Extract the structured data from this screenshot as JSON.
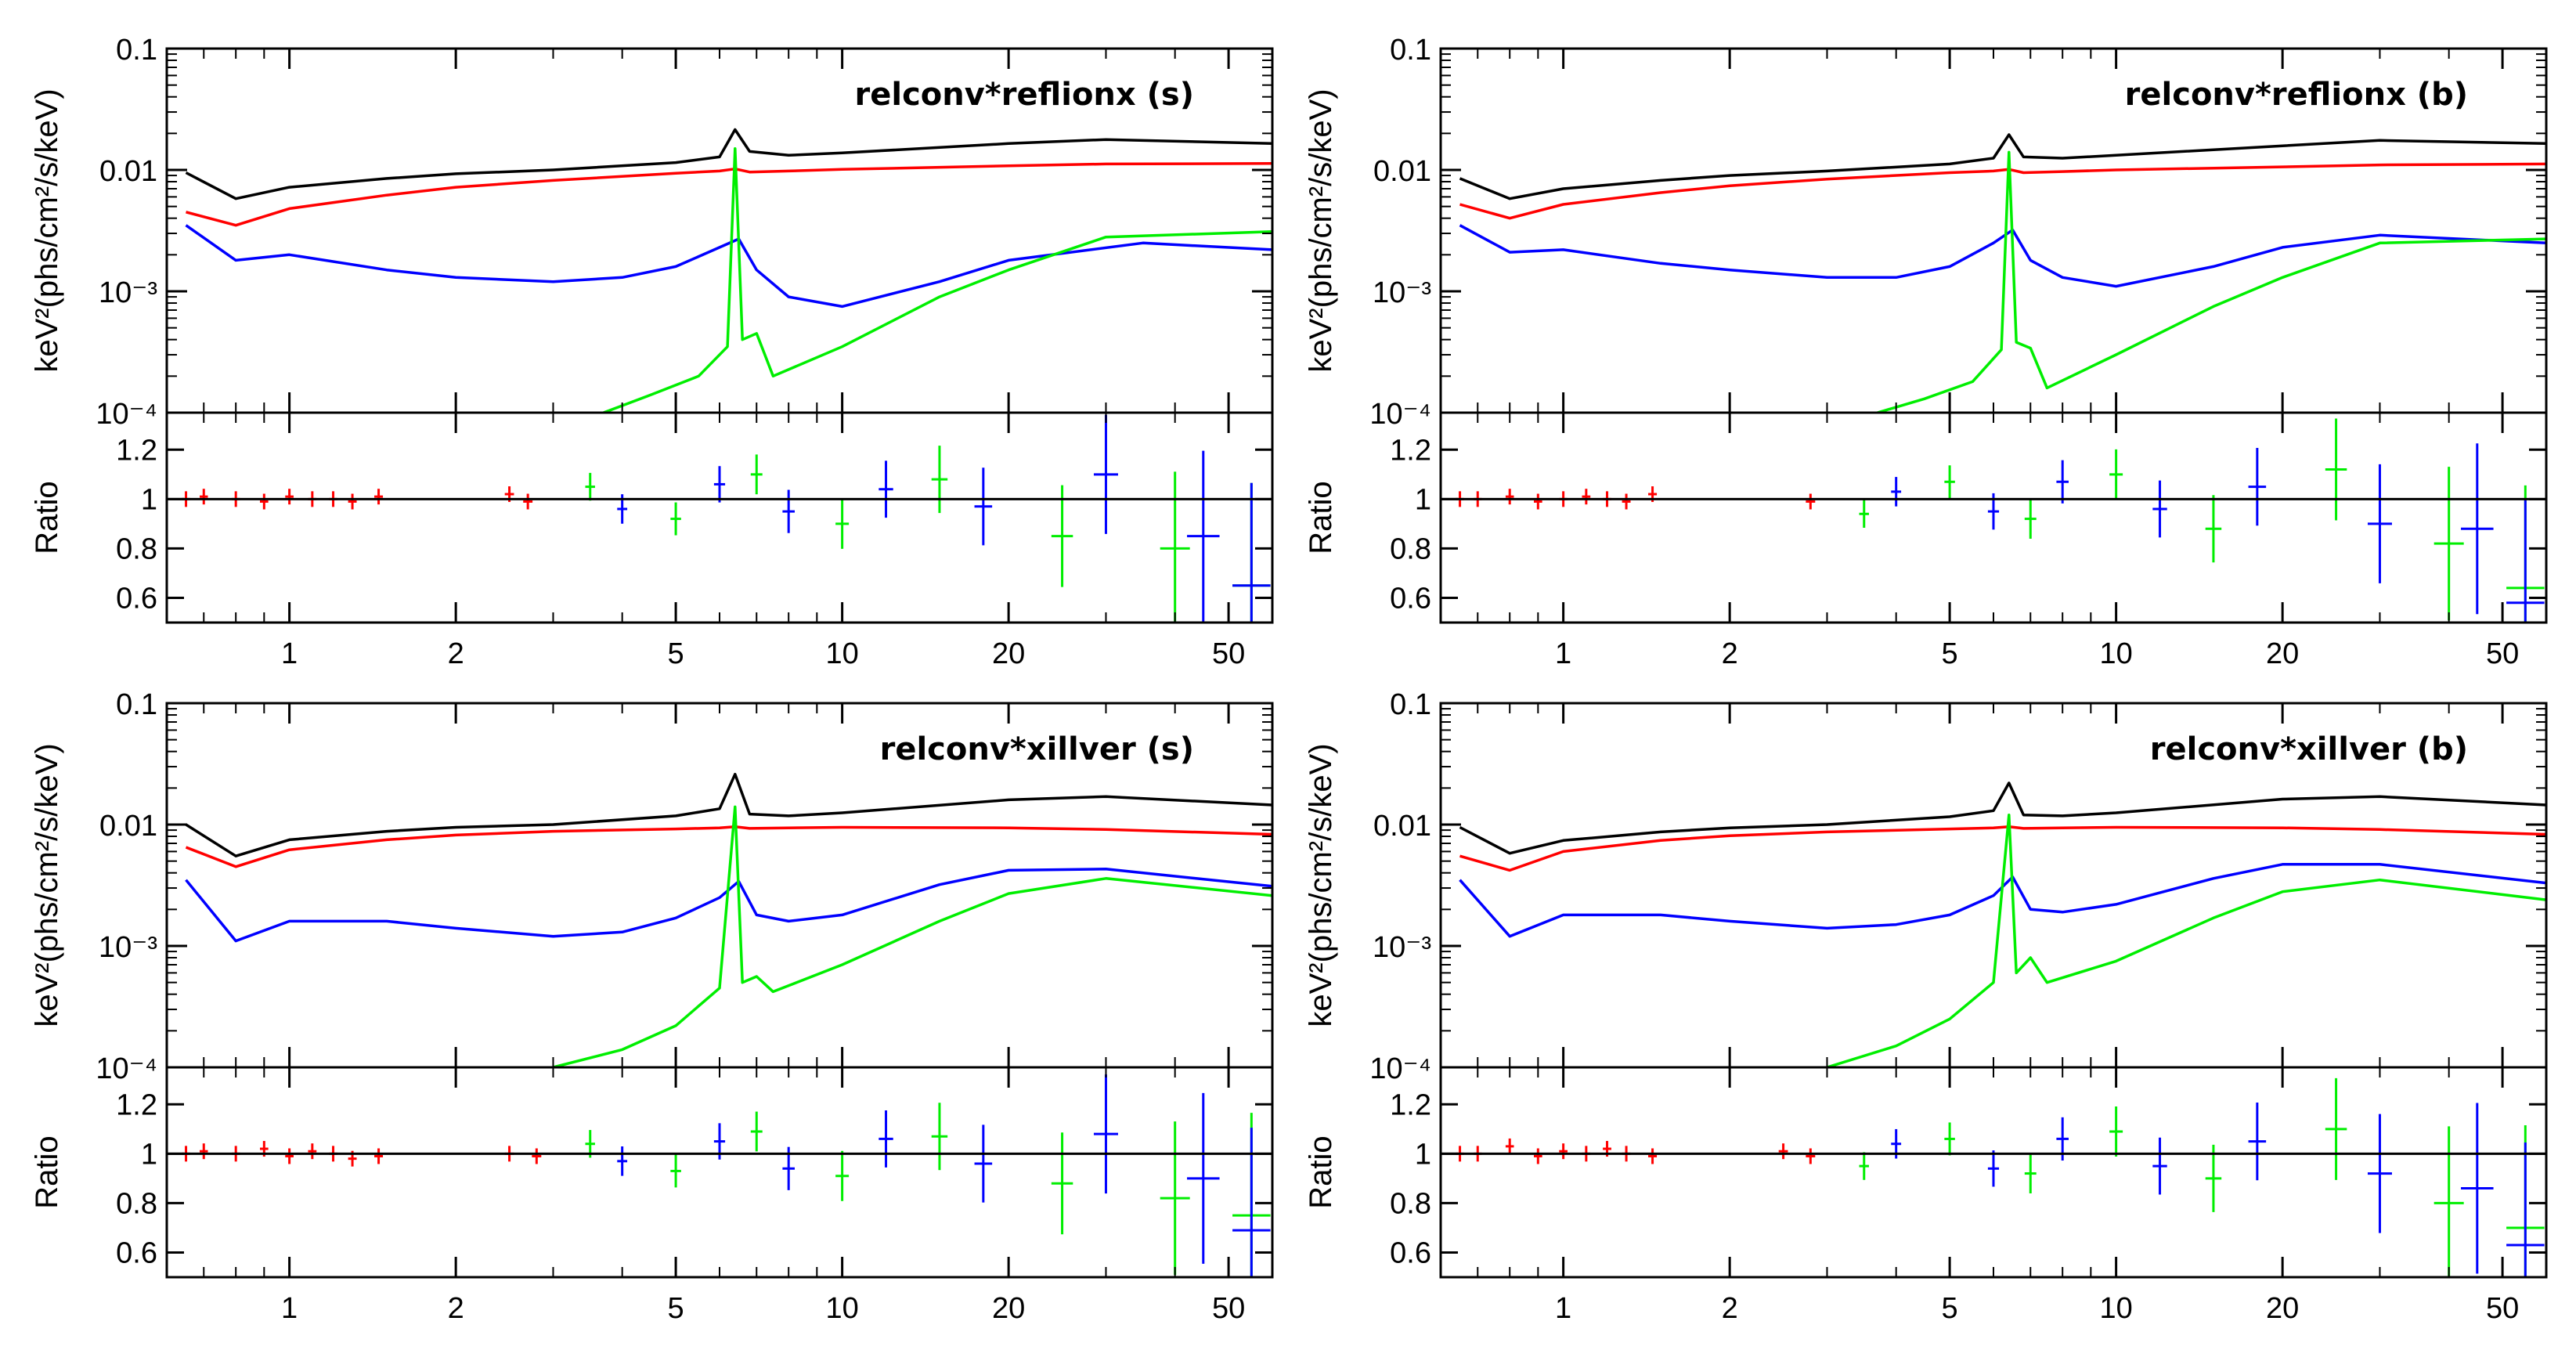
{
  "figure": {
    "y_axis_label_main": "keV²(phs/cm²/s/keV)",
    "y_axis_label_ratio": "Ratio",
    "x_axis_label": "",
    "main_ytick_labels": [
      "0.1",
      "0.01",
      "10⁻³",
      "10⁻⁴"
    ],
    "ratio_ytick_labels": [
      "1.2",
      "1",
      "0.8",
      "0.6"
    ],
    "xtick_labels": [
      "1",
      "2",
      "5",
      "10",
      "20",
      "50"
    ],
    "colors": {
      "total": "#000000",
      "component_red": "#ff0000",
      "component_blue": "#0000ff",
      "component_green": "#00ee00",
      "unity_line": "#000000"
    }
  },
  "chart_data": [
    {
      "type": "line",
      "title": "relconv*reflionx (s)",
      "xlabel": "",
      "ylabel": "keV²(phs/cm²/s/keV)",
      "xscale": "log",
      "yscale": "log",
      "xlim": [
        0.6,
        60
      ],
      "ylim": [
        0.0001,
        0.1
      ],
      "series": [
        {
          "name": "total",
          "color": "#000000",
          "x": [
            0.65,
            0.8,
            1,
            1.5,
            2,
            3,
            5,
            6.0,
            6.4,
            6.8,
            8,
            10,
            20,
            30,
            60
          ],
          "y": [
            0.0095,
            0.0058,
            0.0072,
            0.0085,
            0.0093,
            0.01,
            0.0115,
            0.0128,
            0.0215,
            0.0142,
            0.0132,
            0.0138,
            0.0165,
            0.0178,
            0.0165
          ]
        },
        {
          "name": "red",
          "color": "#ff0000",
          "x": [
            0.65,
            0.8,
            1,
            1.5,
            2,
            3,
            5,
            6.0,
            6.4,
            6.8,
            8,
            10,
            20,
            30,
            60
          ],
          "y": [
            0.0045,
            0.0035,
            0.0048,
            0.0062,
            0.0072,
            0.0082,
            0.0094,
            0.0098,
            0.0102,
            0.0096,
            0.0098,
            0.0101,
            0.0108,
            0.0112,
            0.0113
          ]
        },
        {
          "name": "blue",
          "color": "#0000ff",
          "x": [
            0.65,
            0.8,
            1,
            1.5,
            2,
            3,
            4,
            5,
            6.0,
            6.5,
            7,
            8,
            10,
            15,
            20,
            35,
            60
          ],
          "y": [
            0.0035,
            0.0018,
            0.002,
            0.0015,
            0.0013,
            0.0012,
            0.0013,
            0.0016,
            0.0023,
            0.0027,
            0.0015,
            0.0009,
            0.00075,
            0.0012,
            0.0018,
            0.0025,
            0.0022
          ]
        },
        {
          "name": "green",
          "color": "#00ee00",
          "x": [
            3.7,
            4.5,
            5.5,
            6.2,
            6.4,
            6.6,
            7.0,
            7.5,
            10,
            15,
            20,
            30,
            60
          ],
          "y": [
            0.0001,
            0.00014,
            0.0002,
            0.00035,
            0.015,
            0.0004,
            0.00045,
            0.0002,
            0.00035,
            0.0009,
            0.0015,
            0.0028,
            0.0031
          ]
        }
      ],
      "ratio": {
        "ylabel": "Ratio",
        "ylim": [
          0.5,
          1.35
        ],
        "reference": 1,
        "points": [
          {
            "name": "red",
            "color": "#ff0000",
            "x": [
              0.65,
              0.7,
              0.8,
              0.9,
              1.0,
              1.1,
              1.2,
              1.3,
              1.45,
              2.5,
              2.7
            ],
            "y": [
              1.0,
              1.01,
              1.0,
              0.99,
              1.01,
              1.0,
              1.0,
              0.99,
              1.01,
              1.02,
              0.99
            ]
          },
          {
            "name": "green",
            "color": "#00ee00",
            "x": [
              3.5,
              5,
              7,
              10,
              15,
              25,
              40,
              55
            ],
            "y": [
              1.05,
              0.92,
              1.1,
              0.9,
              1.08,
              0.85,
              0.8,
              0.65
            ]
          },
          {
            "name": "blue",
            "color": "#0000ff",
            "x": [
              4,
              6,
              8,
              12,
              18,
              30,
              45,
              55
            ],
            "y": [
              0.96,
              1.06,
              0.95,
              1.04,
              0.97,
              1.1,
              0.85,
              0.65
            ]
          }
        ]
      }
    },
    {
      "type": "line",
      "title": "relconv*reflionx (b)",
      "xlabel": "",
      "ylabel": "keV²(phs/cm²/s/keV)",
      "xscale": "log",
      "yscale": "log",
      "xlim": [
        0.6,
        60
      ],
      "ylim": [
        0.0001,
        0.1
      ],
      "series": [
        {
          "name": "total",
          "color": "#000000",
          "x": [
            0.65,
            0.8,
            1,
            1.5,
            2,
            3,
            5,
            6.0,
            6.4,
            6.8,
            8,
            10,
            20,
            30,
            60
          ],
          "y": [
            0.0085,
            0.0058,
            0.007,
            0.0082,
            0.009,
            0.0098,
            0.0112,
            0.0125,
            0.0195,
            0.0128,
            0.0125,
            0.0132,
            0.0158,
            0.0175,
            0.0165
          ]
        },
        {
          "name": "red",
          "color": "#ff0000",
          "x": [
            0.65,
            0.8,
            1,
            1.5,
            2,
            3,
            5,
            6.0,
            6.4,
            6.8,
            8,
            10,
            20,
            30,
            60
          ],
          "y": [
            0.0052,
            0.004,
            0.0052,
            0.0065,
            0.0074,
            0.0084,
            0.0095,
            0.0098,
            0.0101,
            0.0095,
            0.0097,
            0.01,
            0.0106,
            0.011,
            0.0112
          ]
        },
        {
          "name": "blue",
          "color": "#0000ff",
          "x": [
            0.65,
            0.8,
            1,
            1.5,
            2,
            3,
            4,
            5,
            6.0,
            6.5,
            7,
            8,
            10,
            15,
            20,
            30,
            60
          ],
          "y": [
            0.0035,
            0.0021,
            0.0022,
            0.0017,
            0.0015,
            0.0013,
            0.0013,
            0.0016,
            0.0025,
            0.0032,
            0.0018,
            0.0013,
            0.0011,
            0.0016,
            0.0023,
            0.0029,
            0.0025
          ]
        },
        {
          "name": "green",
          "color": "#00ee00",
          "x": [
            3.7,
            4.5,
            5.5,
            6.2,
            6.4,
            6.6,
            7.0,
            7.5,
            10,
            15,
            20,
            30,
            60
          ],
          "y": [
            0.0001,
            0.00013,
            0.00018,
            0.00033,
            0.014,
            0.00038,
            0.00034,
            0.00016,
            0.0003,
            0.00075,
            0.0013,
            0.0025,
            0.0027
          ]
        }
      ],
      "ratio": {
        "ylabel": "Ratio",
        "ylim": [
          0.5,
          1.35
        ],
        "reference": 1,
        "points": [
          {
            "name": "red",
            "color": "#ff0000",
            "x": [
              0.65,
              0.7,
              0.8,
              0.9,
              1.0,
              1.1,
              1.2,
              1.3,
              1.45,
              2.8
            ],
            "y": [
              1.0,
              1.0,
              1.01,
              0.99,
              1.0,
              1.01,
              1.0,
              0.99,
              1.02,
              0.99
            ]
          },
          {
            "name": "green",
            "color": "#00ee00",
            "x": [
              3.5,
              5,
              7,
              10,
              15,
              25,
              40,
              55
            ],
            "y": [
              0.94,
              1.07,
              0.92,
              1.1,
              0.88,
              1.12,
              0.82,
              0.64
            ]
          },
          {
            "name": "blue",
            "color": "#0000ff",
            "x": [
              4,
              6,
              8,
              12,
              18,
              30,
              45,
              55
            ],
            "y": [
              1.03,
              0.95,
              1.07,
              0.96,
              1.05,
              0.9,
              0.88,
              0.58
            ]
          }
        ]
      }
    },
    {
      "type": "line",
      "title": "relconv*xillver (s)",
      "xlabel": "",
      "ylabel": "keV²(phs/cm²/s/keV)",
      "xscale": "log",
      "yscale": "log",
      "xlim": [
        0.6,
        60
      ],
      "ylim": [
        0.0001,
        0.1
      ],
      "series": [
        {
          "name": "total",
          "color": "#000000",
          "x": [
            0.65,
            0.8,
            1,
            1.5,
            2,
            3,
            5,
            6.0,
            6.4,
            6.8,
            8,
            10,
            20,
            30,
            60
          ],
          "y": [
            0.01,
            0.0055,
            0.0075,
            0.0088,
            0.0095,
            0.01,
            0.0118,
            0.0135,
            0.026,
            0.0122,
            0.0118,
            0.0125,
            0.016,
            0.017,
            0.0145
          ]
        },
        {
          "name": "red",
          "color": "#ff0000",
          "x": [
            0.65,
            0.8,
            1,
            1.5,
            2,
            3,
            5,
            6.0,
            6.4,
            6.8,
            8,
            10,
            20,
            30,
            60
          ],
          "y": [
            0.0065,
            0.0045,
            0.0062,
            0.0075,
            0.0082,
            0.0088,
            0.0092,
            0.0094,
            0.0096,
            0.0093,
            0.0094,
            0.0095,
            0.0094,
            0.0091,
            0.0083
          ]
        },
        {
          "name": "blue",
          "color": "#0000ff",
          "x": [
            0.65,
            0.8,
            1,
            1.5,
            2,
            3,
            4,
            5,
            6.0,
            6.5,
            7,
            8,
            10,
            15,
            20,
            30,
            60
          ],
          "y": [
            0.0035,
            0.0011,
            0.0016,
            0.0016,
            0.0014,
            0.0012,
            0.0013,
            0.0017,
            0.0025,
            0.0034,
            0.0018,
            0.0016,
            0.0018,
            0.0032,
            0.0042,
            0.0043,
            0.0031
          ]
        },
        {
          "name": "green",
          "color": "#00ee00",
          "x": [
            3.0,
            4.0,
            5.0,
            6.0,
            6.4,
            6.6,
            7.0,
            7.5,
            10,
            15,
            20,
            30,
            60
          ],
          "y": [
            0.0001,
            0.00014,
            0.00022,
            0.00045,
            0.014,
            0.0005,
            0.00056,
            0.00042,
            0.0007,
            0.0016,
            0.0027,
            0.0036,
            0.0026
          ]
        }
      ],
      "ratio": {
        "ylabel": "Ratio",
        "ylim": [
          0.5,
          1.35
        ],
        "reference": 1,
        "points": [
          {
            "name": "red",
            "color": "#ff0000",
            "x": [
              0.65,
              0.7,
              0.8,
              0.9,
              1.0,
              1.1,
              1.2,
              1.3,
              1.45,
              2.5,
              2.8
            ],
            "y": [
              1.0,
              1.01,
              1.0,
              1.02,
              0.99,
              1.01,
              1.0,
              0.98,
              0.99,
              1.0,
              0.99
            ]
          },
          {
            "name": "green",
            "color": "#00ee00",
            "x": [
              3.5,
              5,
              7,
              10,
              15,
              25,
              40,
              55
            ],
            "y": [
              1.04,
              0.93,
              1.09,
              0.91,
              1.07,
              0.88,
              0.82,
              0.75
            ]
          },
          {
            "name": "blue",
            "color": "#0000ff",
            "x": [
              4,
              6,
              8,
              12,
              18,
              30,
              45,
              55
            ],
            "y": [
              0.97,
              1.05,
              0.94,
              1.06,
              0.96,
              1.08,
              0.9,
              0.69
            ]
          }
        ]
      }
    },
    {
      "type": "line",
      "title": "relconv*xillver (b)",
      "xlabel": "",
      "ylabel": "keV²(phs/cm²/s/keV)",
      "xscale": "log",
      "yscale": "log",
      "xlim": [
        0.6,
        60
      ],
      "ylim": [
        0.0001,
        0.1
      ],
      "series": [
        {
          "name": "total",
          "color": "#000000",
          "x": [
            0.65,
            0.8,
            1,
            1.5,
            2,
            3,
            5,
            6.0,
            6.4,
            6.8,
            8,
            10,
            20,
            30,
            60
          ],
          "y": [
            0.0095,
            0.0058,
            0.0074,
            0.0087,
            0.0094,
            0.01,
            0.0116,
            0.013,
            0.022,
            0.012,
            0.0118,
            0.0125,
            0.0162,
            0.017,
            0.0145
          ]
        },
        {
          "name": "red",
          "color": "#ff0000",
          "x": [
            0.65,
            0.8,
            1,
            1.5,
            2,
            3,
            5,
            6.0,
            6.4,
            6.8,
            8,
            10,
            20,
            30,
            60
          ],
          "y": [
            0.0055,
            0.0042,
            0.006,
            0.0074,
            0.0081,
            0.0087,
            0.0092,
            0.0094,
            0.0096,
            0.0093,
            0.0094,
            0.0095,
            0.0094,
            0.0091,
            0.0083
          ]
        },
        {
          "name": "blue",
          "color": "#0000ff",
          "x": [
            0.65,
            0.8,
            1,
            1.5,
            2,
            3,
            4,
            5,
            6.0,
            6.5,
            7,
            8,
            10,
            15,
            20,
            30,
            60
          ],
          "y": [
            0.0035,
            0.0012,
            0.0018,
            0.0018,
            0.0016,
            0.0014,
            0.0015,
            0.0018,
            0.0026,
            0.0037,
            0.002,
            0.0019,
            0.0022,
            0.0036,
            0.0047,
            0.0047,
            0.0033
          ]
        },
        {
          "name": "green",
          "color": "#00ee00",
          "x": [
            3.0,
            4.0,
            5.0,
            6.0,
            6.4,
            6.6,
            7.0,
            7.5,
            10,
            15,
            20,
            30,
            60
          ],
          "y": [
            0.0001,
            0.00015,
            0.00025,
            0.0005,
            0.012,
            0.0006,
            0.0008,
            0.0005,
            0.00075,
            0.0017,
            0.0028,
            0.0035,
            0.0024
          ]
        }
      ],
      "ratio": {
        "ylabel": "Ratio",
        "ylim": [
          0.5,
          1.35
        ],
        "reference": 1,
        "points": [
          {
            "name": "red",
            "color": "#ff0000",
            "x": [
              0.65,
              0.7,
              0.8,
              0.9,
              1.0,
              1.1,
              1.2,
              1.3,
              1.45,
              2.5,
              2.8
            ],
            "y": [
              1.0,
              1.0,
              1.03,
              0.99,
              1.01,
              1.0,
              1.02,
              1.0,
              0.99,
              1.01,
              0.99
            ]
          },
          {
            "name": "green",
            "color": "#00ee00",
            "x": [
              3.5,
              5,
              7,
              10,
              15,
              25,
              40,
              55
            ],
            "y": [
              0.95,
              1.06,
              0.92,
              1.09,
              0.9,
              1.1,
              0.8,
              0.7
            ]
          },
          {
            "name": "blue",
            "color": "#0000ff",
            "x": [
              4,
              6,
              8,
              12,
              18,
              30,
              45,
              55
            ],
            "y": [
              1.04,
              0.94,
              1.06,
              0.95,
              1.05,
              0.92,
              0.86,
              0.63
            ]
          }
        ]
      }
    }
  ]
}
